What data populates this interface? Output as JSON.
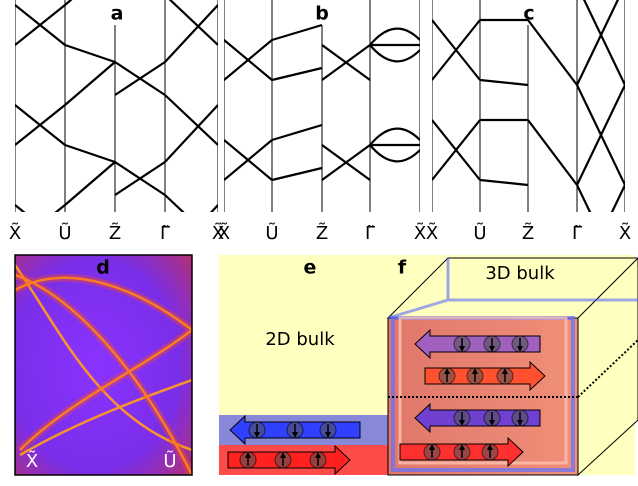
{
  "panels": [
    {
      "label": "a",
      "ticks": [
        "X̃",
        "Ũ",
        "Z̃",
        "Γ̃",
        "X̃"
      ]
    },
    {
      "label": "b",
      "ticks": [
        "X̃",
        "Ũ",
        "Z̃",
        "Γ̃",
        "X̃"
      ]
    },
    {
      "label": "c",
      "ticks": [
        "X̃",
        "Ũ",
        "Z̃",
        "Γ̃",
        "X̃"
      ]
    },
    {
      "label": "d",
      "ticks": [
        "X̃",
        "Ũ"
      ]
    },
    {
      "label": "e",
      "text": "2D bulk"
    },
    {
      "label": "f",
      "text": "3D bulk"
    }
  ]
}
